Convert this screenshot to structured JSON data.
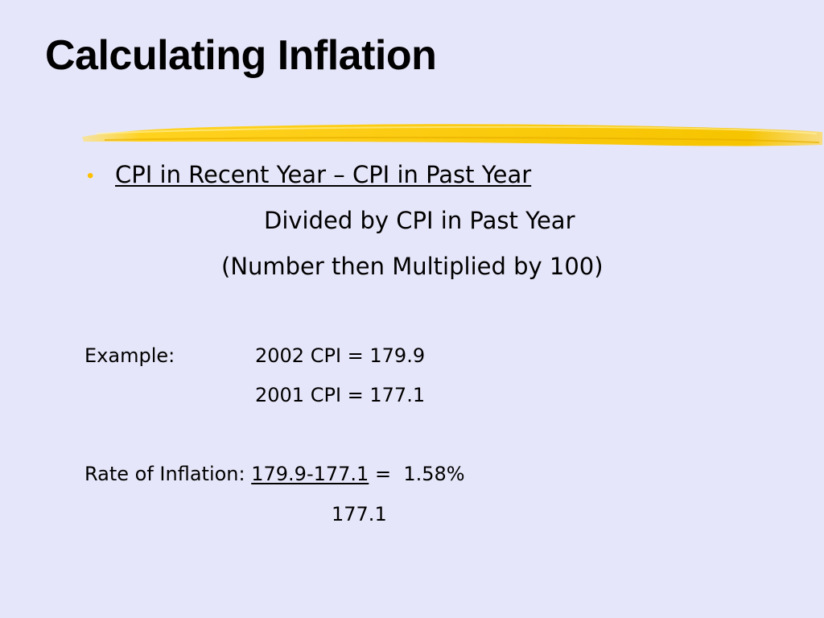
{
  "slide": {
    "title": "Calculating Inflation",
    "bullet": {
      "numerator": "CPI in Recent Year – CPI in Past Year",
      "divided_line": "Divided by CPI in Past Year",
      "multiplied_line": "(Number then Multiplied by 100)"
    },
    "example": {
      "label": "Example:",
      "cpi_2002": "2002 CPI = 179.9",
      "cpi_2001": "2001 CPI = 177.1"
    },
    "rate": {
      "label": "Rate of Inflation:",
      "numerator": "179.9-177.1",
      "equals_result": "=  1.58%",
      "denominator": "177.1"
    }
  },
  "colors": {
    "background": "#e6e6fa",
    "accent_yellow": "#ffc000"
  }
}
